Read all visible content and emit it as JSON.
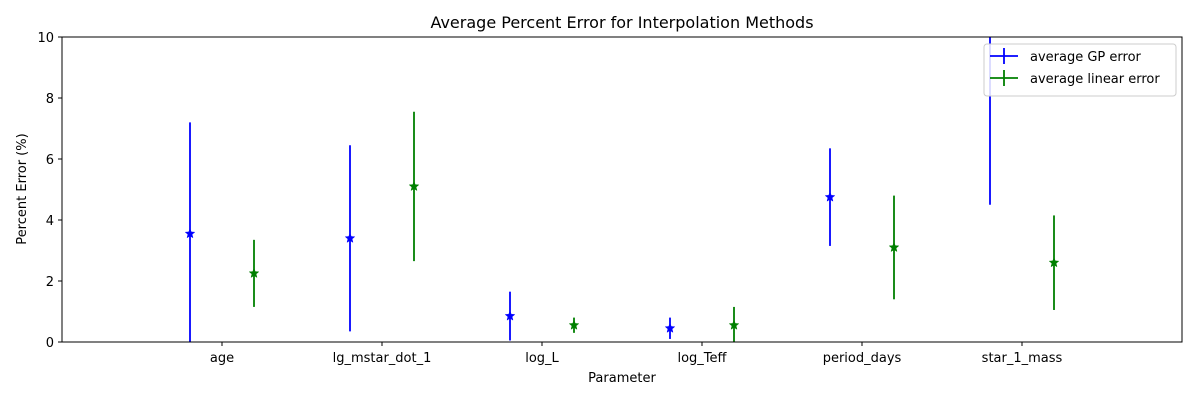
{
  "chart_data": {
    "type": "errorbar",
    "title": "Average Percent Error for Interpolation Methods",
    "xlabel": "Parameter",
    "ylabel": "Percent Error (%)",
    "ylim": [
      0,
      10
    ],
    "yticks": [
      0,
      2,
      4,
      6,
      8,
      10
    ],
    "grid": false,
    "legend_position": "upper right",
    "marker": "star",
    "categories": [
      "age",
      "lg_mstar_dot_1",
      "log_L",
      "log_Teff",
      "period_days",
      "star_1_mass"
    ],
    "series": [
      {
        "name": "average GP error",
        "color": "#0000ff",
        "values": [
          3.55,
          3.4,
          0.85,
          0.45,
          4.75,
          10.5
        ],
        "errors": [
          3.65,
          3.05,
          0.8,
          0.35,
          1.6,
          6.0
        ]
      },
      {
        "name": "average linear error",
        "color": "#008000",
        "values": [
          2.25,
          5.1,
          0.55,
          0.55,
          3.1,
          2.6
        ],
        "errors": [
          1.1,
          2.45,
          0.25,
          0.6,
          1.7,
          1.55
        ]
      }
    ]
  }
}
